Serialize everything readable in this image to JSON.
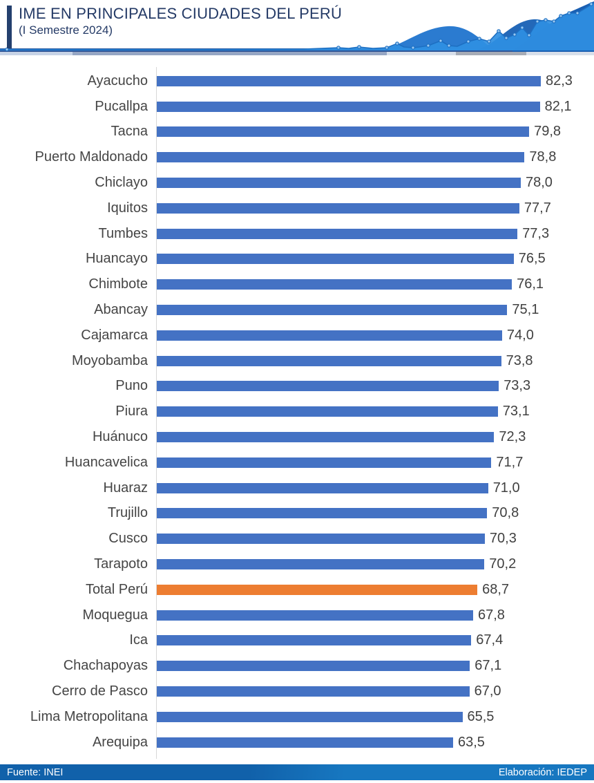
{
  "header": {
    "title": "IME EN PRINCIPALES CIUDADES DEL PERÚ",
    "subtitle": "(I Semestre 2024)",
    "accent_color": "#24406E"
  },
  "footer": {
    "source": "Fuente: INEI",
    "elaboration": "Elaboración: IEDEP"
  },
  "chart_data": {
    "type": "bar",
    "orientation": "horizontal",
    "title": "IME EN PRINCIPALES CIUDADES DEL PERÚ (I Semestre 2024)",
    "categories": [
      "Ayacucho",
      "Pucallpa",
      "Tacna",
      "Puerto Maldonado",
      "Chiclayo",
      "Iquitos",
      "Tumbes",
      "Huancayo",
      "Chimbote",
      "Abancay",
      "Cajamarca",
      "Moyobamba",
      "Puno",
      "Piura",
      "Huánuco",
      "Huancavelica",
      "Huaraz",
      "Trujillo",
      "Cusco",
      "Tarapoto",
      "Total Perú",
      "Moquegua",
      "Ica",
      "Chachapoyas",
      "Cerro de Pasco",
      "Lima Metropolitana",
      "Arequipa"
    ],
    "values": [
      82.3,
      82.1,
      79.8,
      78.8,
      78.0,
      77.7,
      77.3,
      76.5,
      76.1,
      75.1,
      74.0,
      73.8,
      73.3,
      73.1,
      72.3,
      71.7,
      71.0,
      70.8,
      70.3,
      70.2,
      68.7,
      67.8,
      67.4,
      67.1,
      67.0,
      65.5,
      63.5
    ],
    "display_values": [
      "82,3",
      "82,1",
      "79,8",
      "78,8",
      "78,0",
      "77,7",
      "77,3",
      "76,5",
      "76,1",
      "75,1",
      "74,0",
      "73,8",
      "73,3",
      "73,1",
      "72,3",
      "71,7",
      "71,0",
      "70,8",
      "70,3",
      "70,2",
      "68,7",
      "67,8",
      "67,4",
      "67,1",
      "67,0",
      "65,5",
      "63,5"
    ],
    "highlight_category": "Total Perú",
    "bar_color": "#4472C4",
    "highlight_color": "#ED7D31",
    "value_label_color": "#404040",
    "xlim": [
      0,
      86
    ],
    "grid": false,
    "legend": false
  }
}
